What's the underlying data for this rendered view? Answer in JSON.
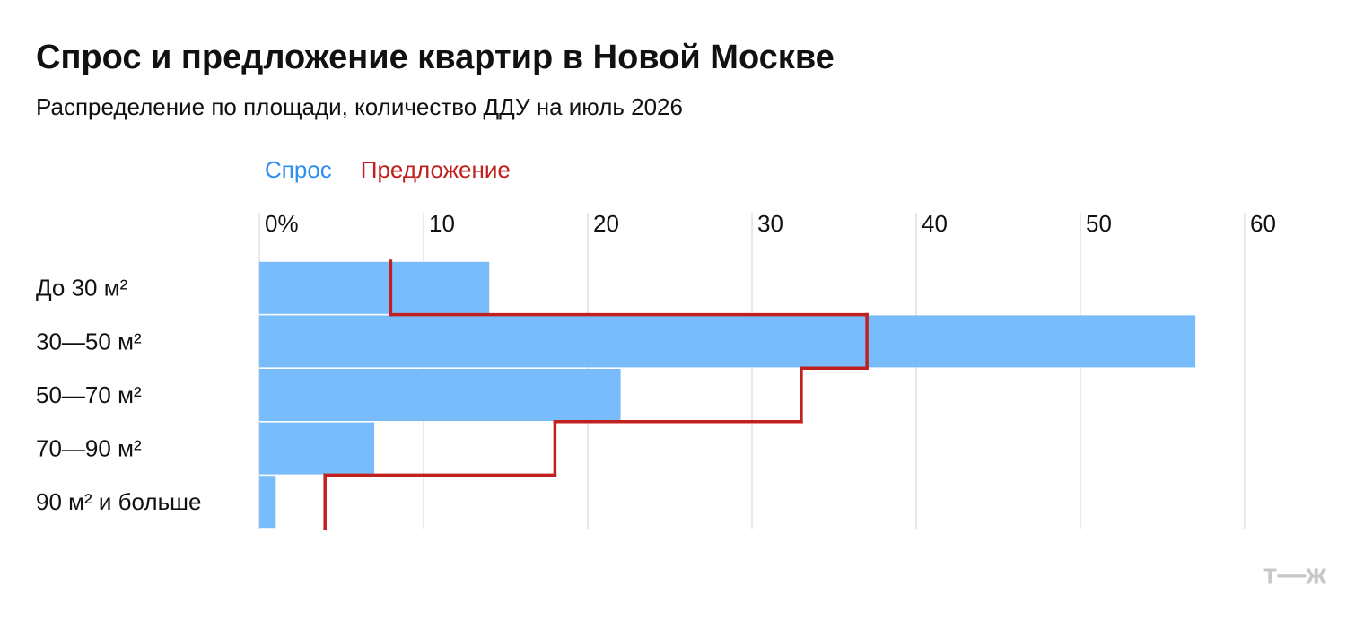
{
  "chart_data": {
    "type": "bar",
    "orientation": "horizontal",
    "title": "Спрос и предложение квартир в Новой Москве",
    "subtitle": "Распределение по площади, количество ДДУ на июль 2026",
    "categories": [
      "До 30 м²",
      "30—50 м²",
      "50—70 м²",
      "70—90 м²",
      "90 м² и больше"
    ],
    "series": [
      {
        "name": "Спрос",
        "color": "#78bcfc",
        "legend_color": "#2f8ff0",
        "type": "bar",
        "values": [
          14,
          57,
          22,
          7,
          1
        ]
      },
      {
        "name": "Предложение",
        "color": "#c0201e",
        "legend_color": "#c0201e",
        "type": "step",
        "values": [
          8,
          37,
          33,
          18,
          4
        ]
      }
    ],
    "xlim": [
      0,
      60
    ],
    "xticks": [
      {
        "value": 0,
        "label": "0%"
      },
      10,
      20,
      30,
      40,
      50,
      60
    ],
    "grid": true,
    "logo": "т—ж"
  }
}
